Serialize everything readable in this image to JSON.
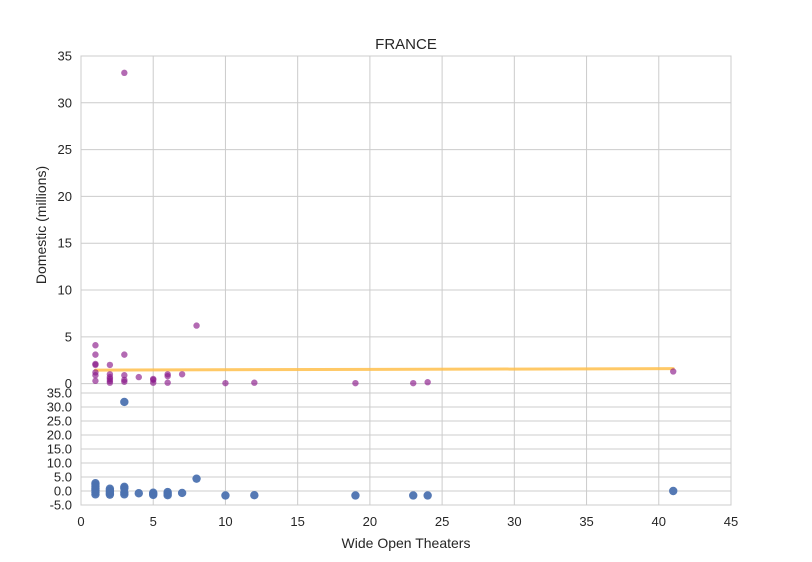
{
  "chart_data": [
    {
      "type": "scatter",
      "title": "FRANCE",
      "xlabel": "",
      "ylabel": "Domestic (millions)",
      "xlim": [
        0,
        45
      ],
      "ylim": [
        -1,
        35
      ],
      "xticks": [
        "0",
        "5",
        "10",
        "15",
        "20",
        "25",
        "30",
        "35",
        "40",
        "45"
      ],
      "yticks": [
        {
          "v": 35,
          "label": "35"
        },
        {
          "v": 30,
          "label": "30"
        },
        {
          "v": 25,
          "label": "25"
        },
        {
          "v": 20,
          "label": "20"
        },
        {
          "v": 15,
          "label": "15"
        },
        {
          "v": 10,
          "label": "10"
        },
        {
          "v": 5,
          "label": "5"
        },
        {
          "v": 0,
          "label": "0"
        }
      ],
      "grid": true,
      "point_color": "#8b1a8b",
      "trend_color": "#ffc04d",
      "points": [
        {
          "x": 1,
          "y": 4.1
        },
        {
          "x": 1,
          "y": 3.1
        },
        {
          "x": 1,
          "y": 2.1
        },
        {
          "x": 1,
          "y": 2.0
        },
        {
          "x": 1,
          "y": 1.2
        },
        {
          "x": 1,
          "y": 0.9
        },
        {
          "x": 1,
          "y": 0.3
        },
        {
          "x": 2,
          "y": 2.0
        },
        {
          "x": 2,
          "y": 1.0
        },
        {
          "x": 2,
          "y": 0.7
        },
        {
          "x": 2,
          "y": 0.5
        },
        {
          "x": 2,
          "y": 0.3
        },
        {
          "x": 2,
          "y": 0.1
        },
        {
          "x": 3,
          "y": 33.2
        },
        {
          "x": 3,
          "y": 3.1
        },
        {
          "x": 3,
          "y": 0.9
        },
        {
          "x": 3,
          "y": 0.4
        },
        {
          "x": 3,
          "y": 0.2
        },
        {
          "x": 4,
          "y": 0.7
        },
        {
          "x": 5,
          "y": 0.5
        },
        {
          "x": 5,
          "y": 0.4
        },
        {
          "x": 5,
          "y": 0.1
        },
        {
          "x": 6,
          "y": 1.0
        },
        {
          "x": 6,
          "y": 0.8
        },
        {
          "x": 6,
          "y": 0.1
        },
        {
          "x": 7,
          "y": 1.0
        },
        {
          "x": 8,
          "y": 6.2
        },
        {
          "x": 10,
          "y": 0.05
        },
        {
          "x": 12,
          "y": 0.1
        },
        {
          "x": 19,
          "y": 0.05
        },
        {
          "x": 23,
          "y": 0.05
        },
        {
          "x": 24,
          "y": 0.15
        },
        {
          "x": 41,
          "y": 1.3
        }
      ],
      "trend": [
        {
          "x": 1,
          "y": 1.45
        },
        {
          "x": 41,
          "y": 1.6
        }
      ]
    },
    {
      "type": "scatter",
      "title": "",
      "xlabel": "Wide Open Theaters",
      "ylabel": "",
      "xlim": [
        0,
        45
      ],
      "ylim": [
        -5,
        35
      ],
      "xticks": [
        "0",
        "5",
        "10",
        "15",
        "20",
        "25",
        "30",
        "35",
        "40",
        "45"
      ],
      "yticks": [
        {
          "v": 35,
          "label": "35.0"
        },
        {
          "v": 30,
          "label": "30.0"
        },
        {
          "v": 25,
          "label": "25.0"
        },
        {
          "v": 20,
          "label": "20.0"
        },
        {
          "v": 15,
          "label": "15.0"
        },
        {
          "v": 10,
          "label": "10.0"
        },
        {
          "v": 5,
          "label": "5.0"
        },
        {
          "v": 0,
          "label": "0.0"
        },
        {
          "v": -5,
          "label": "-5.0"
        }
      ],
      "grid": true,
      "point_color": "#4c72b0",
      "points": [
        {
          "x": 1,
          "y": 2.8
        },
        {
          "x": 1,
          "y": 2.2
        },
        {
          "x": 1,
          "y": 1.5
        },
        {
          "x": 1,
          "y": 0.8
        },
        {
          "x": 1,
          "y": 0.2
        },
        {
          "x": 1,
          "y": -0.5
        },
        {
          "x": 1,
          "y": -1.2
        },
        {
          "x": 2,
          "y": 0.8
        },
        {
          "x": 2,
          "y": 0.2
        },
        {
          "x": 2,
          "y": -0.3
        },
        {
          "x": 2,
          "y": -0.8
        },
        {
          "x": 2,
          "y": -1.3
        },
        {
          "x": 3,
          "y": 31.8
        },
        {
          "x": 3,
          "y": 1.5
        },
        {
          "x": 3,
          "y": 1.0
        },
        {
          "x": 3,
          "y": -0.5
        },
        {
          "x": 3,
          "y": -1.2
        },
        {
          "x": 4,
          "y": -0.8
        },
        {
          "x": 5,
          "y": -0.6
        },
        {
          "x": 5,
          "y": -1.0
        },
        {
          "x": 5,
          "y": -1.4
        },
        {
          "x": 6,
          "y": -0.4
        },
        {
          "x": 6,
          "y": -1.0
        },
        {
          "x": 6,
          "y": -1.5
        },
        {
          "x": 7,
          "y": -0.7
        },
        {
          "x": 8,
          "y": 4.4
        },
        {
          "x": 10,
          "y": -1.6
        },
        {
          "x": 12,
          "y": -1.5
        },
        {
          "x": 19,
          "y": -1.6
        },
        {
          "x": 23,
          "y": -1.6
        },
        {
          "x": 24,
          "y": -1.6
        },
        {
          "x": 41,
          "y": 0.0
        }
      ]
    }
  ]
}
